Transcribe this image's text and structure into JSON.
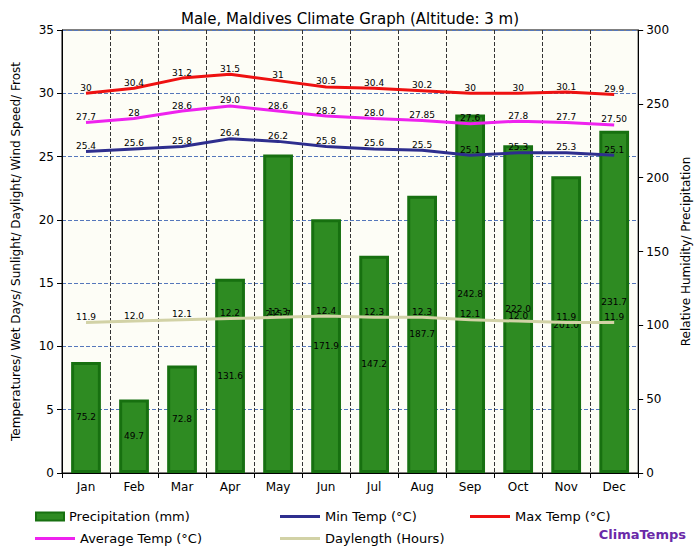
{
  "chart_data": {
    "type": "bar",
    "title": "Male, Maldives Climate Graph (Altitude: 3 m)",
    "y_label": "Temperatures/ Wet Days/ Sunlight/ Daylight/ Wind Speed/ Frost",
    "y2_label": "Relative Humidity/ Precipitation",
    "annotations": [
      "ClimaTemps"
    ],
    "categories": [
      "Jan",
      "Feb",
      "Mar",
      "Apr",
      "May",
      "Jun",
      "Jul",
      "Aug",
      "Sep",
      "Oct",
      "Nov",
      "Dec"
    ],
    "ylim": [
      0,
      35
    ],
    "yticks": [
      0,
      5,
      10,
      15,
      20,
      25,
      30,
      35
    ],
    "y2lim": [
      0,
      300
    ],
    "y2ticks": [
      0,
      50,
      100,
      150,
      200,
      250,
      300
    ],
    "grid": true,
    "legend": "bottom",
    "data_labels": true,
    "series": [
      {
        "name": "Precipitation (mm)",
        "type": "bar",
        "axis": "y2",
        "color": "#2e8b22",
        "values": [
          75.2,
          49.7,
          72.8,
          131.6,
          215.7,
          171.9,
          147.2,
          187.7,
          242.8,
          222.0,
          201.0,
          231.7
        ],
        "value_labels": [
          "75.2",
          "49.7",
          "72.8",
          "131.6",
          "215.7",
          "171.9",
          "147.2",
          "187.7",
          "242.8",
          "222.0",
          "201.0",
          "231.7"
        ]
      },
      {
        "name": "Min Temp (°C)",
        "type": "line",
        "color": "#2e2e8e",
        "values": [
          25.4,
          25.6,
          25.8,
          26.4,
          26.2,
          25.8,
          25.6,
          25.5,
          25.1,
          25.3,
          25.3,
          25.1
        ],
        "value_labels": [
          "25.4",
          "25.6",
          "25.8",
          "26.4",
          "26.2",
          "25.8",
          "25.6",
          "25.5",
          "25.1",
          "25.3",
          "25.3",
          "25.1"
        ]
      },
      {
        "name": "Max Temp (°C)",
        "type": "line",
        "color": "#ee1111",
        "values": [
          30,
          30.4,
          31.2,
          31.5,
          31,
          30.5,
          30.4,
          30.2,
          30,
          30,
          30.1,
          29.9
        ],
        "value_labels": [
          "30",
          "30.4",
          "31.2",
          "31.5",
          "31",
          "30.5",
          "30.4",
          "30.2",
          "30",
          "30",
          "30.1",
          "29.9"
        ]
      },
      {
        "name": "Average Temp (°C)",
        "type": "line",
        "color": "#ee22ee",
        "values": [
          27.7,
          28,
          28.6,
          29.0,
          28.6,
          28.2,
          28.0,
          27.85,
          27.6,
          27.8,
          27.7,
          27.5
        ],
        "value_labels": [
          "27.7",
          "28",
          "28.6",
          "29.0",
          "28.6",
          "28.2",
          "28.0",
          "27.85",
          "27.6",
          "27.8",
          "27.7",
          "27.50"
        ]
      },
      {
        "name": "Daylength (Hours)",
        "type": "line",
        "color": "#d2d2a6",
        "values": [
          11.9,
          12.0,
          12.1,
          12.2,
          12.3,
          12.4,
          12.3,
          12.3,
          12.1,
          12.0,
          11.9,
          11.9
        ],
        "value_labels": [
          "11.9",
          "12.0",
          "12.1",
          "12.2",
          "12.3",
          "12.4",
          "12.3",
          "12.3",
          "12.1",
          "12.0",
          "11.9",
          "11.9"
        ]
      }
    ]
  }
}
